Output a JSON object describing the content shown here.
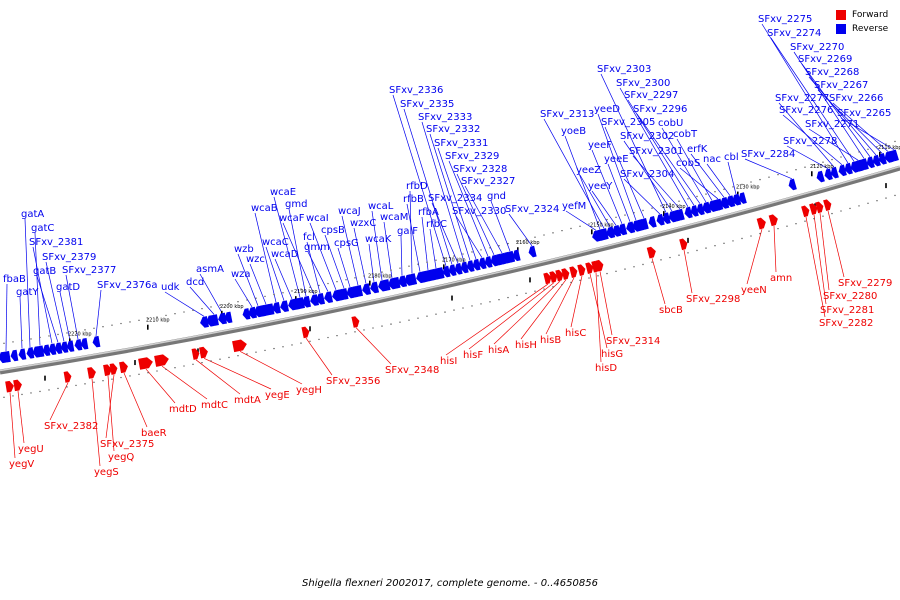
{
  "legend": {
    "forward_label": "Forward",
    "reverse_label": "Reverse",
    "forward_color": "#ee0000",
    "reverse_color": "#0000ee"
  },
  "caption": "Shigella flexneri 2002017, complete genome. - 0..4650856",
  "ticks": [
    "2110 kbp",
    "2120 kbp",
    "2130 kbp",
    "2140 kbp",
    "2150 kbp",
    "2160 kbp",
    "2170 kbp",
    "2180 kbp",
    "2190 kbp",
    "2200 kbp",
    "2210 kbp",
    "2220 kbp"
  ],
  "reverse_genes": [
    "fbaB",
    "gatY",
    "gatA",
    "gatC",
    "SFxv_2381",
    "gatB",
    "SFxv_2379",
    "gatD",
    "SFxv_2377",
    "SFxv_2376a",
    "udk",
    "dcd",
    "asmA",
    "wza",
    "wzb",
    "wzc",
    "wcaB",
    "wcaC",
    "wcaD",
    "wcaE",
    "gmd",
    "wcaF",
    "fcl",
    "gmm",
    "wcaI",
    "cpsB",
    "cpsG",
    "wcaJ",
    "wzxC",
    "wcaK",
    "wcaL",
    "wcaM",
    "galF",
    "rfbD",
    "rfbB",
    "rfbA",
    "rfbC",
    "SFxv_2336",
    "SFxv_2335",
    "SFxv_2334",
    "SFxv_2333",
    "SFxv_2332",
    "SFxv_2331",
    "SFxv_2330",
    "SFxv_2329",
    "SFxv_2328",
    "SFxv_2327",
    "gnd",
    "SFxv_2324",
    "yefM",
    "yoeB",
    "SFxv_2313",
    "yeeZ",
    "yeeY",
    "yeeF",
    "yeeE",
    "yeeD",
    "SFxv_2305",
    "SFxv_2304",
    "SFxv_2303",
    "SFxv_2302",
    "SFxv_2301",
    "SFxv_2300",
    "SFxv_2297",
    "SFxv_2296",
    "cobU",
    "cobT",
    "cobS",
    "erfK",
    "nac",
    "cbl",
    "SFxv_2284",
    "SFxv_2278",
    "SFxv_2277",
    "SFxv_2276",
    "SFxv_2275",
    "SFxv_2274",
    "SFxv_2271",
    "SFxv_2270",
    "SFxv_2269",
    "SFxv_2268",
    "SFxv_2267",
    "SFxv_2266",
    "SFxv_2265"
  ],
  "forward_genes": [
    "yegV",
    "yegU",
    "SFxv_2382",
    "yegS",
    "yegQ",
    "SFxv_2375",
    "baeR",
    "mdtD",
    "mdtC",
    "mdtA",
    "yegE",
    "yegH",
    "SFxv_2356",
    "SFxv_2348",
    "hisI",
    "hisF",
    "hisA",
    "hisH",
    "hisB",
    "hisC",
    "hisG",
    "hisD",
    "SFxv_2314",
    "sbcB",
    "SFxv_2298",
    "yeeN",
    "amn",
    "SFxv_2282",
    "SFxv_2281",
    "SFxv_2280",
    "SFxv_2279"
  ]
}
